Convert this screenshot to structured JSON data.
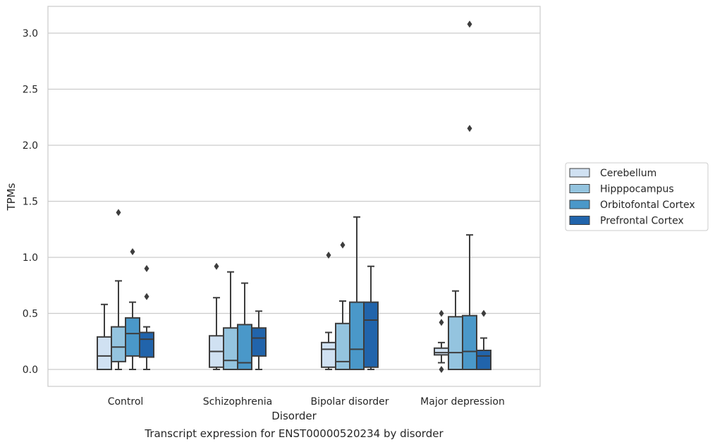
{
  "caption": "Transcript expression for ENST00000520234 by disorder",
  "chart_data": {
    "type": "box",
    "xlabel": "Disorder",
    "ylabel": "TPMs",
    "ylim": [
      -0.15,
      3.25
    ],
    "yticks": [
      "0.0",
      "0.5",
      "1.0",
      "1.5",
      "2.0",
      "2.5",
      "3.0"
    ],
    "grid": true,
    "legend_position": "center-right, outside plot",
    "categories": [
      "Control",
      "Schizophrenia",
      "Bipolar disorder",
      "Major depression"
    ],
    "series": [
      {
        "name": "Cerebellum",
        "color": "#d0e1f2",
        "boxes": [
          {
            "whisker_low": 0.0,
            "q1": 0.0,
            "median": 0.12,
            "q3": 0.29,
            "whisker_high": 0.58,
            "outliers": []
          },
          {
            "whisker_low": 0.0,
            "q1": 0.02,
            "median": 0.16,
            "q3": 0.3,
            "whisker_high": 0.64,
            "outliers": [
              0.92
            ]
          },
          {
            "whisker_low": 0.0,
            "q1": 0.02,
            "median": 0.18,
            "q3": 0.24,
            "whisker_high": 0.33,
            "outliers": [
              1.02
            ]
          },
          {
            "whisker_low": 0.06,
            "q1": 0.13,
            "median": 0.15,
            "q3": 0.19,
            "whisker_high": 0.24,
            "outliers": [
              0.0,
              0.42,
              0.5
            ]
          }
        ]
      },
      {
        "name": "Hipppocampus",
        "color": "#94c4df",
        "boxes": [
          {
            "whisker_low": 0.0,
            "q1": 0.07,
            "median": 0.2,
            "q3": 0.38,
            "whisker_high": 0.79,
            "outliers": [
              1.4
            ]
          },
          {
            "whisker_low": 0.0,
            "q1": 0.0,
            "median": 0.08,
            "q3": 0.37,
            "whisker_high": 0.87,
            "outliers": []
          },
          {
            "whisker_low": 0.0,
            "q1": 0.0,
            "median": 0.07,
            "q3": 0.41,
            "whisker_high": 0.61,
            "outliers": [
              1.11
            ]
          },
          {
            "whisker_low": 0.0,
            "q1": 0.0,
            "median": 0.15,
            "q3": 0.47,
            "whisker_high": 0.7,
            "outliers": []
          }
        ]
      },
      {
        "name": "Orbitofontal Cortex",
        "color": "#4a98c9",
        "boxes": [
          {
            "whisker_low": 0.0,
            "q1": 0.12,
            "median": 0.32,
            "q3": 0.46,
            "whisker_high": 0.6,
            "outliers": [
              1.05
            ]
          },
          {
            "whisker_low": 0.0,
            "q1": 0.0,
            "median": 0.06,
            "q3": 0.4,
            "whisker_high": 0.77,
            "outliers": []
          },
          {
            "whisker_low": 0.0,
            "q1": 0.0,
            "median": 0.18,
            "q3": 0.6,
            "whisker_high": 1.36,
            "outliers": []
          },
          {
            "whisker_low": 0.0,
            "q1": 0.0,
            "median": 0.16,
            "q3": 0.48,
            "whisker_high": 1.2,
            "outliers": [
              2.15,
              3.08
            ]
          }
        ]
      },
      {
        "name": "Prefrontal Cortex",
        "color": "#2164ab",
        "boxes": [
          {
            "whisker_low": 0.0,
            "q1": 0.11,
            "median": 0.27,
            "q3": 0.33,
            "whisker_high": 0.38,
            "outliers": [
              0.65,
              0.9
            ]
          },
          {
            "whisker_low": 0.0,
            "q1": 0.12,
            "median": 0.28,
            "q3": 0.37,
            "whisker_high": 0.52,
            "outliers": []
          },
          {
            "whisker_low": 0.0,
            "q1": 0.02,
            "median": 0.44,
            "q3": 0.6,
            "whisker_high": 0.92,
            "outliers": []
          },
          {
            "whisker_low": 0.0,
            "q1": 0.0,
            "median": 0.12,
            "q3": 0.17,
            "whisker_high": 0.28,
            "outliers": [
              0.5
            ]
          }
        ]
      }
    ]
  }
}
